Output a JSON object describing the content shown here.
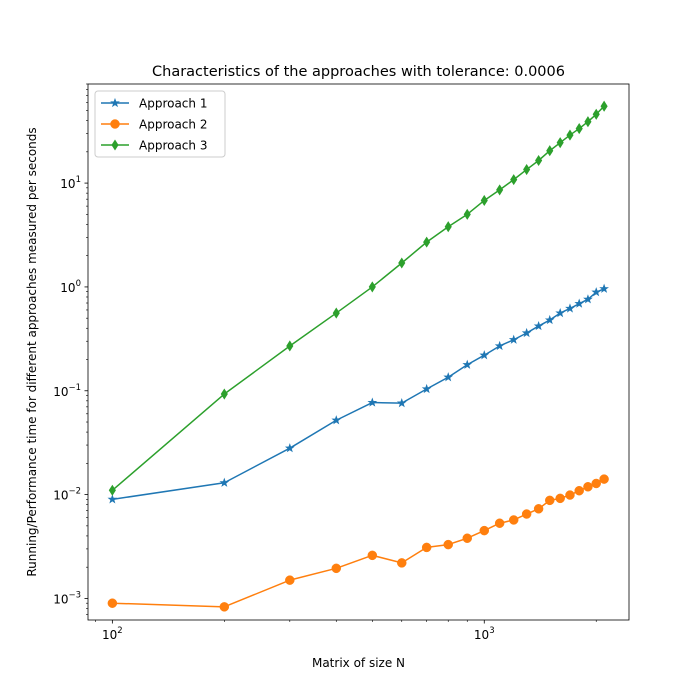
{
  "chart_data": {
    "type": "line",
    "title": "Characteristics of the approaches with tolerance: 0.0006",
    "xlabel": "Matrix of size N",
    "ylabel": "Running/Performance time for different approaches measured per seconds",
    "xscale": "log",
    "yscale": "log",
    "xlim": [
      86,
      2450
    ],
    "ylim": [
      0.00062,
      90
    ],
    "grid": false,
    "legend_position": "top-left",
    "x_ticks": [
      {
        "value": 100,
        "base": "10",
        "exp": "2"
      },
      {
        "value": 1000,
        "base": "10",
        "exp": "3"
      }
    ],
    "y_ticks": [
      {
        "value": 0.001,
        "base": "10",
        "exp": "−3"
      },
      {
        "value": 0.01,
        "base": "10",
        "exp": "−2"
      },
      {
        "value": 0.1,
        "base": "10",
        "exp": "−1"
      },
      {
        "value": 1,
        "base": "10",
        "exp": "0"
      },
      {
        "value": 10,
        "base": "10",
        "exp": "1"
      }
    ],
    "x": [
      100,
      200,
      300,
      400,
      500,
      600,
      700,
      800,
      900,
      1000,
      1100,
      1200,
      1300,
      1400,
      1500,
      1600,
      1700,
      1800,
      1900,
      2000,
      2100
    ],
    "series": [
      {
        "name": "Approach 1",
        "color": "#1f77b4",
        "marker": "star",
        "x": [
          100,
          200,
          300,
          400,
          500,
          600,
          700,
          800,
          900,
          1000,
          1100,
          1200,
          1300,
          1400,
          1500,
          1600,
          1700,
          1800,
          1900,
          2000,
          2100
        ],
        "values": [
          0.009,
          0.013,
          0.028,
          0.052,
          0.077,
          0.076,
          0.104,
          0.135,
          0.178,
          0.22,
          0.27,
          0.31,
          0.36,
          0.42,
          0.48,
          0.56,
          0.62,
          0.69,
          0.76,
          0.89,
          0.96
        ]
      },
      {
        "name": "Approach 2",
        "color": "#ff7f0e",
        "marker": "circle",
        "x": [
          100,
          200,
          300,
          400,
          500,
          600,
          700,
          800,
          900,
          1000,
          1100,
          1200,
          1300,
          1400,
          1500,
          1600,
          1700,
          1800,
          1900,
          2000,
          2100
        ],
        "values": [
          0.0009,
          0.00083,
          0.0015,
          0.00195,
          0.0026,
          0.0022,
          0.0031,
          0.0033,
          0.0038,
          0.0045,
          0.0053,
          0.0057,
          0.0065,
          0.0073,
          0.0088,
          0.0092,
          0.0099,
          0.0109,
          0.0119,
          0.0128,
          0.0141
        ]
      },
      {
        "name": "Approach 3",
        "color": "#2ca02c",
        "marker": "thin_diamond",
        "x": [
          100,
          200,
          300,
          400,
          500,
          600,
          700,
          800,
          900,
          1000,
          1100,
          1200,
          1300,
          1400,
          1500,
          1600,
          1700,
          1800,
          1900,
          2000,
          2100
        ],
        "values": [
          0.011,
          0.093,
          0.27,
          0.56,
          1.0,
          1.7,
          2.7,
          3.8,
          5.0,
          6.8,
          8.6,
          10.8,
          13.5,
          16.5,
          20.5,
          24.5,
          29.0,
          33.5,
          39.0,
          46.0,
          55.0
        ]
      }
    ]
  }
}
